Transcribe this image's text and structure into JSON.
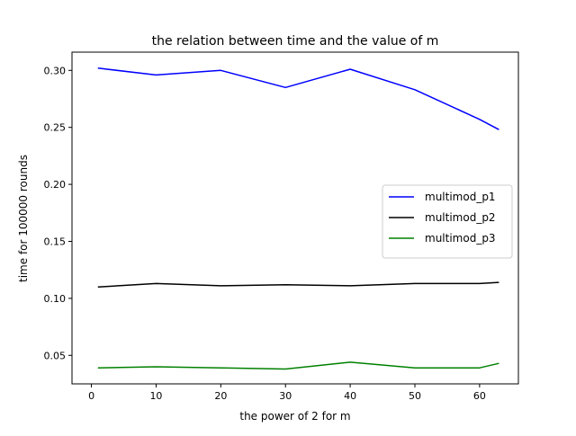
{
  "chart_data": {
    "type": "line",
    "title": "the relation between time and the value of m",
    "xlabel": "the power of 2 for m",
    "ylabel": "time for 100000 rounds",
    "xlim": [
      -3,
      66
    ],
    "ylim": [
      0.025,
      0.316
    ],
    "xticks": [
      0,
      10,
      20,
      30,
      40,
      50,
      60
    ],
    "yticks": [
      0.05,
      0.1,
      0.15,
      0.2,
      0.25,
      0.3
    ],
    "ytick_labels": [
      "0.05",
      "0.10",
      "0.15",
      "0.20",
      "0.25",
      "0.30"
    ],
    "grid": false,
    "legend_position": "center-right",
    "x": [
      1,
      10,
      20,
      30,
      40,
      50,
      60,
      63
    ],
    "series": [
      {
        "name": "multimod_p1",
        "color": "#0000ff",
        "values": [
          0.302,
          0.296,
          0.3,
          0.285,
          0.301,
          0.283,
          0.257,
          0.248
        ]
      },
      {
        "name": "multimod_p2",
        "color": "#000000",
        "values": [
          0.11,
          0.113,
          0.111,
          0.112,
          0.111,
          0.113,
          0.113,
          0.114
        ]
      },
      {
        "name": "multimod_p3",
        "color": "#008000",
        "values": [
          0.039,
          0.04,
          0.039,
          0.038,
          0.044,
          0.039,
          0.039,
          0.043
        ]
      }
    ]
  }
}
